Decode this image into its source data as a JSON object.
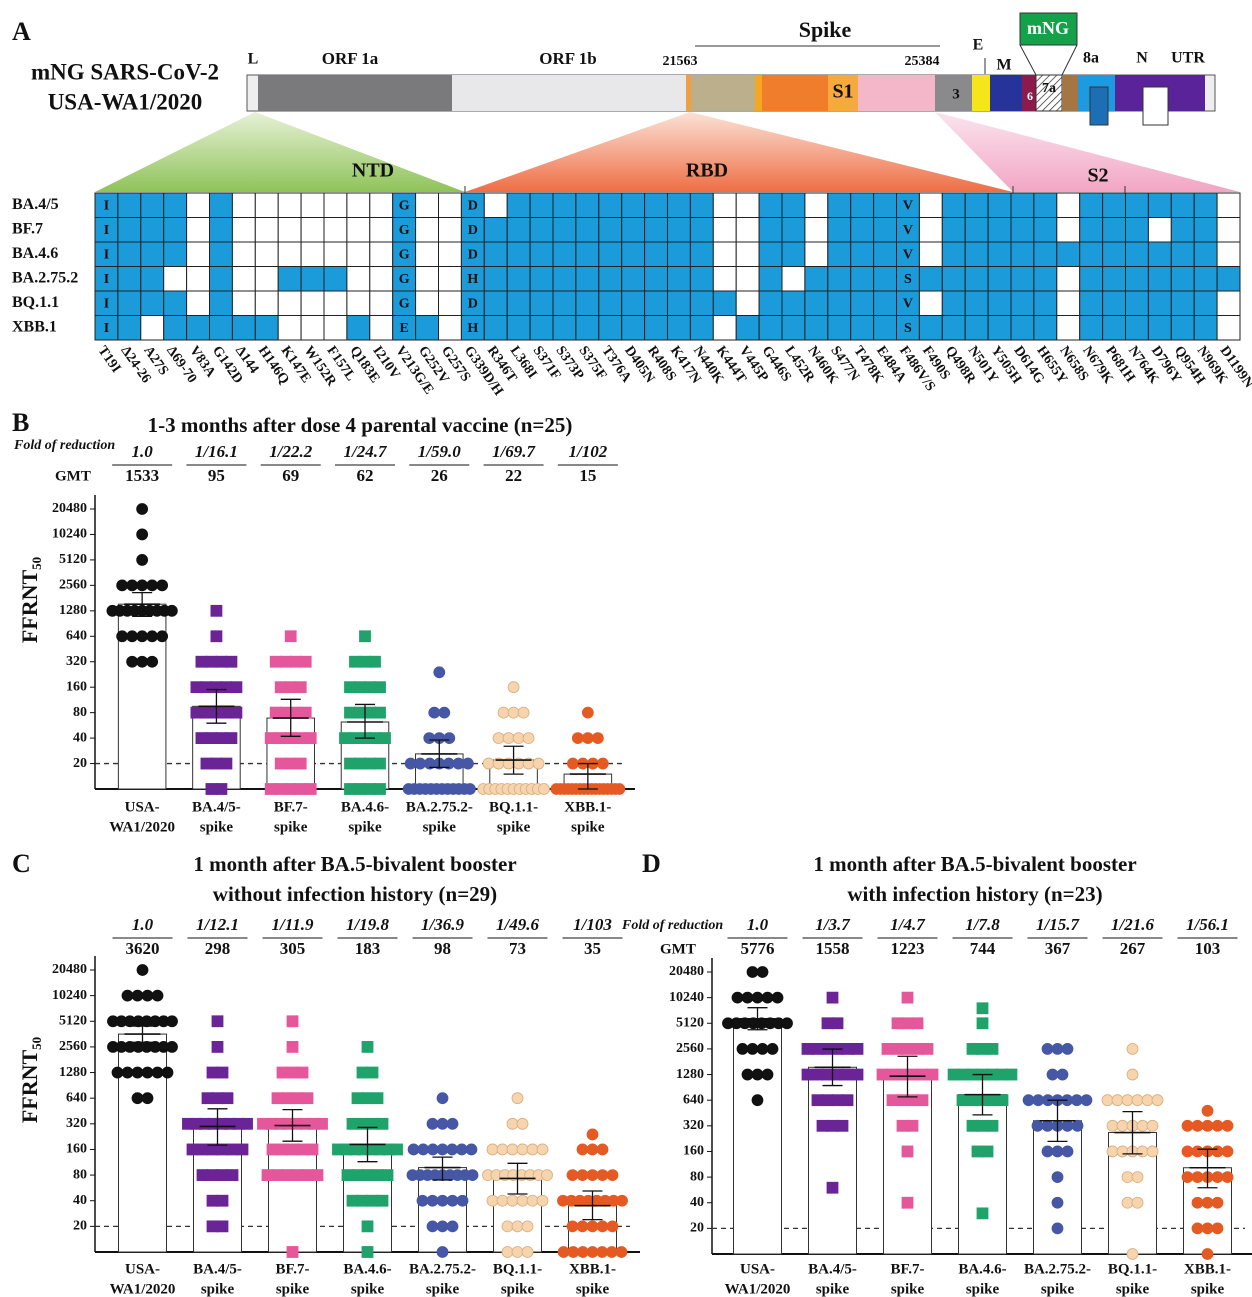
{
  "panel_a": {
    "letter": "A",
    "name_lines": [
      "mNG SARS-CoV-2",
      "USA-WA1/2020"
    ],
    "labels": {
      "L": "L",
      "orf1a": "ORF 1a",
      "orf1b": "ORF 1b",
      "start": "21563",
      "spike": "Spike",
      "end": "25384",
      "s1": "S1",
      "orf3": "3",
      "e": "E",
      "m": "M",
      "mng": "mNG",
      "orf6": "6",
      "orf7a": "7a",
      "orf8a": "8a",
      "n": "N",
      "utr": "UTR",
      "ntd": "NTD",
      "rbd": "RBD",
      "s2": "S2"
    },
    "mutations": [
      "T19I",
      "Δ24-26",
      "A27S",
      "Δ69-70",
      "V83A",
      "G142D",
      "Δ144",
      "H146Q",
      "K147E",
      "W152R",
      "F157L",
      "Q183E",
      "I210V",
      "V213G/E",
      "G252V",
      "G257S",
      "G339D/H",
      "R346T",
      "L368I",
      "S371F",
      "S373P",
      "S375F",
      "T376A",
      "D405N",
      "R408S",
      "K417N",
      "N440K",
      "K444T",
      "V445P",
      "G446S",
      "L452R",
      "N460K",
      "S477N",
      "T478K",
      "E484A",
      "F486V/S",
      "F490S",
      "Q498R",
      "N501Y",
      "Y505H",
      "D614G",
      "H655Y",
      "N658S",
      "N679K",
      "P681H",
      "N764K",
      "D796Y",
      "Q954H",
      "N969K",
      "D1199N"
    ],
    "cell_color": "#1b9bd9",
    "rows": [
      {
        "name": "BA.4/5",
        "cells": [
          "I",
          1,
          1,
          1,
          0,
          1,
          0,
          0,
          0,
          0,
          0,
          0,
          0,
          "G",
          0,
          0,
          "D",
          0,
          1,
          1,
          1,
          1,
          1,
          1,
          1,
          1,
          1,
          0,
          0,
          1,
          1,
          0,
          1,
          1,
          1,
          "V",
          0,
          1,
          1,
          1,
          1,
          1,
          0,
          1,
          1,
          1,
          1,
          1,
          1,
          0
        ]
      },
      {
        "name": "BF.7",
        "cells": [
          "I",
          1,
          1,
          1,
          0,
          1,
          0,
          0,
          0,
          0,
          0,
          0,
          0,
          "G",
          0,
          0,
          "D",
          1,
          1,
          1,
          1,
          1,
          1,
          1,
          1,
          1,
          1,
          0,
          0,
          1,
          1,
          0,
          1,
          1,
          1,
          "V",
          0,
          1,
          1,
          1,
          1,
          1,
          0,
          1,
          1,
          1,
          0,
          1,
          1,
          0
        ]
      },
      {
        "name": "BA.4.6",
        "cells": [
          "I",
          1,
          1,
          1,
          0,
          1,
          0,
          0,
          0,
          0,
          0,
          0,
          0,
          "G",
          0,
          0,
          "D",
          1,
          1,
          1,
          1,
          1,
          1,
          1,
          1,
          1,
          1,
          0,
          0,
          1,
          1,
          0,
          1,
          1,
          1,
          "V",
          0,
          1,
          1,
          1,
          1,
          1,
          1,
          1,
          1,
          1,
          1,
          1,
          1,
          0
        ]
      },
      {
        "name": "BA.2.75.2",
        "cells": [
          "I",
          1,
          1,
          0,
          0,
          1,
          0,
          0,
          1,
          1,
          1,
          0,
          0,
          "G",
          0,
          0,
          "H",
          1,
          1,
          1,
          1,
          1,
          1,
          1,
          1,
          1,
          1,
          0,
          0,
          1,
          0,
          1,
          1,
          1,
          1,
          "S",
          1,
          1,
          1,
          1,
          1,
          1,
          0,
          1,
          1,
          1,
          1,
          1,
          1,
          1
        ]
      },
      {
        "name": "BQ.1.1",
        "cells": [
          "I",
          1,
          1,
          1,
          0,
          1,
          0,
          0,
          0,
          0,
          0,
          0,
          0,
          "G",
          0,
          0,
          "D",
          1,
          1,
          1,
          1,
          1,
          1,
          1,
          1,
          1,
          1,
          1,
          0,
          1,
          1,
          1,
          1,
          1,
          1,
          "V",
          0,
          1,
          1,
          1,
          1,
          1,
          0,
          1,
          1,
          1,
          1,
          1,
          1,
          0
        ]
      },
      {
        "name": "XBB.1",
        "cells": [
          "I",
          1,
          0,
          1,
          1,
          1,
          1,
          1,
          0,
          0,
          0,
          1,
          0,
          "E",
          1,
          0,
          "H",
          1,
          1,
          1,
          1,
          1,
          1,
          1,
          1,
          1,
          1,
          0,
          1,
          1,
          1,
          1,
          1,
          1,
          1,
          "S",
          1,
          1,
          1,
          1,
          1,
          1,
          0,
          1,
          1,
          1,
          1,
          1,
          1,
          0
        ]
      }
    ]
  },
  "chart_data": [
    {
      "type": "dotbar",
      "letter": "B",
      "title": [
        "1-3 months after dose 4 parental vaccine (n=25)"
      ],
      "fold_label": "Fold of reduction",
      "gmt_label": "GMT",
      "ylabel": "FFRNT",
      "ylabel_sub": "50",
      "yscale": "log",
      "ylim": [
        10,
        20480
      ],
      "yticks": [
        20,
        40,
        80,
        160,
        320,
        640,
        1280,
        2560,
        5120,
        10240,
        20480
      ],
      "threshold": 20,
      "categories": [
        [
          "USA-",
          "WA1/2020"
        ],
        [
          "BA.4/5-",
          "spike"
        ],
        [
          "BF.7-",
          "spike"
        ],
        [
          "BA.4.6-",
          "spike"
        ],
        [
          "BA.2.75.2-",
          "spike"
        ],
        [
          "BQ.1.1-",
          "spike"
        ],
        [
          "XBB.1-",
          "spike"
        ]
      ],
      "colors": [
        "#111111",
        "#6b2496",
        "#e5579b",
        "#1fa36b",
        "#4657a6",
        "#f6d4ae",
        "#e45a22"
      ],
      "markers": [
        "circle",
        "square",
        "square",
        "square",
        "circle",
        "circle",
        "circle"
      ],
      "fold": [
        "1.0",
        "1/16.1",
        "1/22.2",
        "1/24.7",
        "1/59.0",
        "1/69.7",
        "1/102"
      ],
      "gmt": [
        1533,
        95,
        69,
        62,
        26,
        22,
        15
      ],
      "ci": [
        [
          1100,
          2100
        ],
        [
          60,
          150
        ],
        [
          42,
          115
        ],
        [
          40,
          100
        ],
        [
          18,
          38
        ],
        [
          15,
          32
        ],
        [
          10,
          20
        ]
      ],
      "points": [
        [
          20480,
          10240,
          5120,
          2560,
          2560,
          2560,
          2560,
          2560,
          1280,
          1280,
          1280,
          1280,
          1280,
          1280,
          1280,
          1280,
          1280,
          640,
          640,
          640,
          640,
          640,
          320,
          320,
          320
        ],
        [
          1280,
          640,
          320,
          320,
          320,
          320,
          160,
          160,
          160,
          160,
          160,
          80,
          80,
          80,
          80,
          80,
          40,
          40,
          40,
          40,
          20,
          20,
          20,
          10,
          10
        ],
        [
          640,
          320,
          320,
          320,
          320,
          160,
          160,
          160,
          80,
          80,
          80,
          80,
          40,
          40,
          40,
          40,
          40,
          20,
          20,
          20,
          10,
          10,
          10,
          10,
          10
        ],
        [
          640,
          320,
          320,
          320,
          160,
          160,
          160,
          160,
          80,
          80,
          80,
          80,
          40,
          40,
          40,
          40,
          40,
          20,
          20,
          20,
          20,
          10,
          10,
          10,
          10
        ],
        [
          240,
          80,
          80,
          40,
          40,
          40,
          20,
          20,
          20,
          20,
          20,
          20,
          20,
          10,
          10,
          10,
          10,
          10,
          10,
          10,
          10,
          10,
          10,
          10,
          10
        ],
        [
          160,
          80,
          80,
          80,
          40,
          40,
          40,
          40,
          20,
          20,
          20,
          20,
          20,
          20,
          10,
          10,
          10,
          10,
          10,
          10,
          10,
          10,
          10,
          10,
          10
        ],
        [
          80,
          40,
          40,
          40,
          20,
          20,
          20,
          20,
          10,
          10,
          10,
          10,
          10,
          10,
          10,
          10,
          10,
          10,
          10,
          10,
          10,
          10,
          10,
          10,
          10
        ]
      ]
    },
    {
      "type": "dotbar",
      "letter": "C",
      "title": [
        "1 month after BA.5-bivalent booster",
        "without infection history (n=29)"
      ],
      "ylabel": "FFRNT",
      "ylabel_sub": "50",
      "yscale": "log",
      "ylim": [
        10,
        20480
      ],
      "yticks": [
        20,
        40,
        80,
        160,
        320,
        640,
        1280,
        2560,
        5120,
        10240,
        20480
      ],
      "threshold": 20,
      "categories": [
        [
          "USA-",
          "WA1/2020"
        ],
        [
          "BA.4/5-",
          "spike"
        ],
        [
          "BF.7-",
          "spike"
        ],
        [
          "BA.4.6-",
          "spike"
        ],
        [
          "BA.2.75.2-",
          "spike"
        ],
        [
          "BQ.1.1-",
          "spike"
        ],
        [
          "XBB.1-",
          "spike"
        ]
      ],
      "colors": [
        "#111111",
        "#6b2496",
        "#e5579b",
        "#1fa36b",
        "#4657a6",
        "#f6d4ae",
        "#e45a22"
      ],
      "markers": [
        "circle",
        "square",
        "square",
        "square",
        "circle",
        "circle",
        "circle"
      ],
      "fold": [
        "1.0",
        "1/12.1",
        "1/11.9",
        "1/19.8",
        "1/36.9",
        "1/49.6",
        "1/103"
      ],
      "gmt": [
        3620,
        298,
        305,
        183,
        98,
        73,
        35
      ],
      "ci": [
        [
          2900,
          4500
        ],
        [
          180,
          480
        ],
        [
          200,
          470
        ],
        [
          115,
          290
        ],
        [
          70,
          130
        ],
        [
          48,
          110
        ],
        [
          24,
          52
        ]
      ],
      "points": [
        [
          20480,
          10240,
          10240,
          10240,
          10240,
          5120,
          5120,
          5120,
          5120,
          5120,
          5120,
          5120,
          5120,
          2560,
          2560,
          2560,
          2560,
          2560,
          2560,
          2560,
          2560,
          1280,
          1280,
          1280,
          1280,
          1280,
          1280,
          640,
          640
        ],
        [
          5120,
          2560,
          1280,
          1280,
          640,
          640,
          640,
          320,
          320,
          320,
          320,
          320,
          320,
          320,
          320,
          160,
          160,
          160,
          160,
          160,
          160,
          80,
          80,
          80,
          80,
          40,
          40,
          20,
          20
        ],
        [
          5120,
          2560,
          1280,
          1280,
          1280,
          640,
          640,
          640,
          640,
          320,
          320,
          320,
          320,
          320,
          320,
          320,
          320,
          160,
          160,
          160,
          160,
          160,
          80,
          80,
          80,
          80,
          80,
          80,
          10
        ],
        [
          2560,
          1280,
          1280,
          640,
          640,
          640,
          320,
          320,
          320,
          320,
          160,
          160,
          160,
          160,
          160,
          160,
          160,
          160,
          80,
          80,
          80,
          80,
          80,
          40,
          40,
          40,
          40,
          20,
          10
        ],
        [
          640,
          320,
          320,
          320,
          160,
          160,
          160,
          160,
          160,
          160,
          160,
          80,
          80,
          80,
          80,
          80,
          80,
          80,
          80,
          80,
          40,
          40,
          40,
          40,
          40,
          20,
          20,
          20,
          10
        ],
        [
          640,
          320,
          320,
          160,
          160,
          160,
          160,
          160,
          160,
          80,
          80,
          80,
          80,
          80,
          80,
          80,
          80,
          40,
          40,
          40,
          40,
          40,
          40,
          20,
          20,
          20,
          10,
          10,
          10
        ],
        [
          240,
          160,
          160,
          160,
          80,
          80,
          80,
          80,
          80,
          40,
          40,
          40,
          40,
          40,
          40,
          40,
          40,
          20,
          20,
          20,
          20,
          20,
          10,
          10,
          10,
          10,
          10,
          10,
          10
        ]
      ]
    },
    {
      "type": "dotbar",
      "letter": "D",
      "title": [
        "1 month after BA.5-bivalent booster",
        "with infection history (n=23)"
      ],
      "fold_label": "Fold of reduction",
      "gmt_label": "GMT",
      "yscale": "log",
      "ylim": [
        10,
        20480
      ],
      "yticks": [
        20,
        40,
        80,
        160,
        320,
        640,
        1280,
        2560,
        5120,
        10240,
        20480
      ],
      "threshold": 20,
      "categories": [
        [
          "USA-",
          "WA1/2020"
        ],
        [
          "BA.4/5-",
          "spike"
        ],
        [
          "BF.7-",
          "spike"
        ],
        [
          "BA.4.6-",
          "spike"
        ],
        [
          "BA.2.75.2-",
          "spike"
        ],
        [
          "BQ.1.1-",
          "spike"
        ],
        [
          "XBB.1-",
          "spike"
        ]
      ],
      "colors": [
        "#111111",
        "#6b2496",
        "#e5579b",
        "#1fa36b",
        "#4657a6",
        "#f6d4ae",
        "#e45a22"
      ],
      "markers": [
        "circle",
        "square",
        "square",
        "square",
        "circle",
        "circle",
        "circle"
      ],
      "fold": [
        "1.0",
        "1/3.7",
        "1/4.7",
        "1/7.8",
        "1/15.7",
        "1/21.6",
        "1/56.1"
      ],
      "gmt": [
        5776,
        1558,
        1223,
        744,
        367,
        267,
        103
      ],
      "ci": [
        [
          4300,
          7800
        ],
        [
          950,
          2550
        ],
        [
          700,
          2100
        ],
        [
          430,
          1280
        ],
        [
          210,
          640
        ],
        [
          150,
          470
        ],
        [
          60,
          170
        ]
      ],
      "points": [
        [
          20480,
          20480,
          10240,
          10240,
          10240,
          10240,
          10240,
          5120,
          5120,
          5120,
          5120,
          5120,
          5120,
          5120,
          5120,
          2560,
          2560,
          2560,
          2560,
          1280,
          1280,
          1280,
          640
        ],
        [
          10240,
          5120,
          5120,
          2560,
          2560,
          2560,
          2560,
          2560,
          2560,
          1280,
          1280,
          1280,
          1280,
          1280,
          1280,
          640,
          640,
          640,
          640,
          320,
          320,
          320,
          60
        ],
        [
          10240,
          5120,
          5120,
          5120,
          2560,
          2560,
          2560,
          2560,
          2560,
          1280,
          1280,
          1280,
          1280,
          1280,
          1280,
          640,
          640,
          640,
          640,
          320,
          320,
          160,
          40
        ],
        [
          7680,
          5120,
          2560,
          2560,
          2560,
          1280,
          1280,
          1280,
          1280,
          1280,
          1280,
          1280,
          640,
          640,
          640,
          640,
          640,
          320,
          320,
          320,
          160,
          160,
          30
        ],
        [
          2560,
          2560,
          2560,
          1280,
          1280,
          640,
          640,
          640,
          640,
          640,
          640,
          640,
          320,
          320,
          320,
          320,
          320,
          160,
          160,
          160,
          80,
          40,
          20
        ],
        [
          2560,
          1280,
          640,
          640,
          640,
          640,
          640,
          640,
          320,
          320,
          320,
          320,
          320,
          160,
          160,
          160,
          160,
          160,
          80,
          80,
          40,
          40,
          10
        ],
        [
          480,
          320,
          320,
          320,
          320,
          320,
          160,
          160,
          160,
          160,
          160,
          80,
          80,
          80,
          80,
          80,
          40,
          40,
          40,
          20,
          20,
          20,
          10
        ]
      ]
    }
  ]
}
